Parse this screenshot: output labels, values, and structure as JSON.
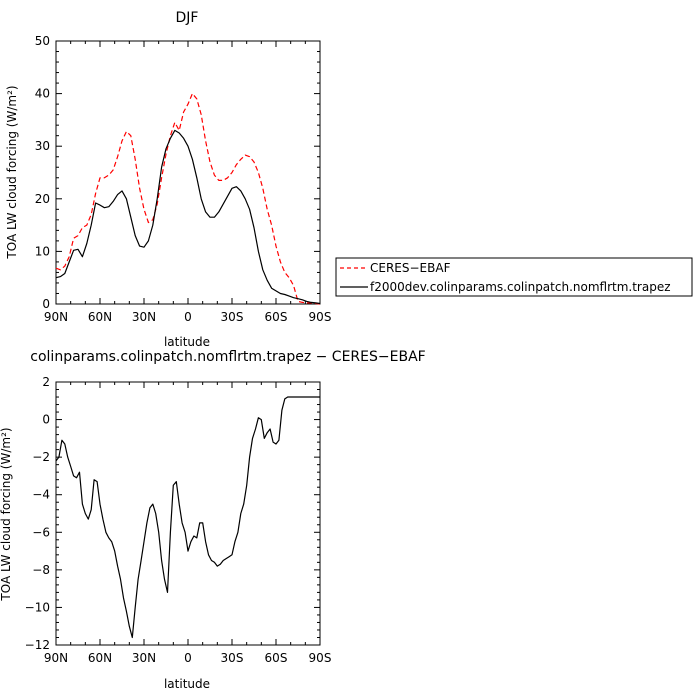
{
  "chart_data": [
    {
      "type": "line",
      "title": "DJF",
      "xlabel": "latitude",
      "ylabel": "TOA LW cloud forcing (W/m²)",
      "xlim": [
        90,
        -90
      ],
      "ylim": [
        0,
        50
      ],
      "xticks": [
        "90N",
        "60N",
        "30N",
        "0",
        "30S",
        "60S",
        "90S"
      ],
      "xtick_values": [
        90,
        60,
        30,
        0,
        -30,
        -60,
        -90
      ],
      "yticks": [
        0,
        10,
        20,
        30,
        40,
        50
      ],
      "legend_position": "right",
      "series": [
        {
          "name": "CERES−EBAF",
          "color": "#ff0000",
          "style": "dashed",
          "x": [
            90,
            87,
            84,
            81,
            78,
            75,
            72,
            69,
            66,
            63,
            60,
            57,
            54,
            51,
            48,
            45,
            42,
            39,
            36,
            33,
            30,
            27,
            24,
            21,
            18,
            15,
            12,
            9,
            6,
            3,
            0,
            -3,
            -6,
            -9,
            -12,
            -15,
            -18,
            -21,
            -24,
            -27,
            -30,
            -33,
            -36,
            -39,
            -42,
            -45,
            -48,
            -51,
            -54,
            -57,
            -60,
            -63,
            -66,
            -69,
            -72,
            -75,
            -78,
            -81,
            -84,
            -87,
            -90
          ],
          "y": [
            6.8,
            6.5,
            7.2,
            9.0,
            12.5,
            13.0,
            14.5,
            15.0,
            17.0,
            21.0,
            24.0,
            24.0,
            24.5,
            25.5,
            28.0,
            31.0,
            32.8,
            32.0,
            27.5,
            22.0,
            18.0,
            15.5,
            16.0,
            19.0,
            24.0,
            28.5,
            32.0,
            34.5,
            33.0,
            36.5,
            38.0,
            40.0,
            39.0,
            36.0,
            31.0,
            27.0,
            24.5,
            23.5,
            23.5,
            24.0,
            25.0,
            26.5,
            27.5,
            28.3,
            28.0,
            27.0,
            25.0,
            22.0,
            18.0,
            15.0,
            11.0,
            8.0,
            6.0,
            5.0,
            3.5,
            0.5,
            0.3,
            0.2,
            0.2,
            0.1,
            0.0
          ]
        },
        {
          "name": "f2000dev.colinparams.colinpatch.nomflrtm.trapez",
          "color": "#000000",
          "style": "solid",
          "x": [
            90,
            87,
            84,
            81,
            78,
            75,
            72,
            69,
            66,
            63,
            60,
            57,
            54,
            51,
            48,
            45,
            42,
            39,
            36,
            33,
            30,
            27,
            24,
            21,
            18,
            15,
            12,
            9,
            6,
            3,
            0,
            -3,
            -6,
            -9,
            -12,
            -15,
            -18,
            -21,
            -24,
            -27,
            -30,
            -33,
            -36,
            -39,
            -42,
            -45,
            -48,
            -51,
            -54,
            -57,
            -60,
            -63,
            -66,
            -69,
            -72,
            -75,
            -78,
            -81,
            -84,
            -87,
            -90
          ],
          "y": [
            5.0,
            5.2,
            5.8,
            8.0,
            10.2,
            10.4,
            9.0,
            11.5,
            15.0,
            19.2,
            18.8,
            18.3,
            18.5,
            19.5,
            20.8,
            21.5,
            20.0,
            16.5,
            13.0,
            11.0,
            10.8,
            12.0,
            15.0,
            20.0,
            26.0,
            29.5,
            31.5,
            33.0,
            32.5,
            31.5,
            30.0,
            27.5,
            24.0,
            20.0,
            17.5,
            16.5,
            16.5,
            17.5,
            19.0,
            20.5,
            22.0,
            22.3,
            21.5,
            20.0,
            18.0,
            14.5,
            10.0,
            6.5,
            4.5,
            3.0,
            2.5,
            2.0,
            1.8,
            1.5,
            1.2,
            1.0,
            0.8,
            0.5,
            0.3,
            0.2,
            0.1
          ]
        }
      ]
    },
    {
      "type": "line",
      "title": "colinparams.colinpatch.nomflrtm.trapez − CERES−EBAF",
      "xlabel": "latitude",
      "ylabel": "TOA LW cloud forcing (W/m²)",
      "xlim": [
        90,
        -90
      ],
      "ylim": [
        -12,
        2
      ],
      "xticks": [
        "90N",
        "60N",
        "30N",
        "0",
        "30S",
        "60S",
        "90S"
      ],
      "xtick_values": [
        90,
        60,
        30,
        0,
        -30,
        -60,
        -90
      ],
      "yticks": [
        -12,
        -10,
        -8,
        -6,
        -4,
        -2,
        0,
        2
      ],
      "series": [
        {
          "color": "#000000",
          "style": "solid",
          "x": [
            90,
            88,
            86,
            84,
            82,
            80,
            78,
            76,
            74,
            72,
            70,
            68,
            66,
            64,
            62,
            60,
            58,
            56,
            54,
            52,
            50,
            48,
            46,
            44,
            42,
            40,
            38,
            36,
            34,
            32,
            30,
            28,
            26,
            24,
            22,
            20,
            18,
            16,
            14,
            12,
            10,
            8,
            6,
            4,
            2,
            0,
            -2,
            -4,
            -6,
            -8,
            -10,
            -12,
            -14,
            -16,
            -18,
            -20,
            -22,
            -24,
            -26,
            -28,
            -30,
            -32,
            -34,
            -36,
            -38,
            -40,
            -42,
            -44,
            -46,
            -48,
            -50,
            -52,
            -54,
            -56,
            -58,
            -60,
            -62,
            -64,
            -66,
            -68,
            -70,
            -72,
            -74,
            -76,
            -78,
            -80,
            -82,
            -84,
            -86,
            -88,
            -90
          ],
          "y": [
            -2.2,
            -2.0,
            -1.1,
            -1.3,
            -2.0,
            -2.5,
            -3.0,
            -3.1,
            -2.8,
            -4.5,
            -5.0,
            -5.3,
            -4.8,
            -3.2,
            -3.3,
            -4.5,
            -5.3,
            -6.0,
            -6.3,
            -6.5,
            -7.0,
            -7.8,
            -8.5,
            -9.5,
            -10.2,
            -11.0,
            -11.6,
            -10.0,
            -8.5,
            -7.5,
            -6.5,
            -5.5,
            -4.7,
            -4.5,
            -5.0,
            -6.0,
            -7.5,
            -8.5,
            -9.2,
            -6.0,
            -3.5,
            -3.3,
            -4.5,
            -5.5,
            -6.0,
            -7.0,
            -6.5,
            -6.2,
            -6.3,
            -5.5,
            -5.5,
            -6.5,
            -7.2,
            -7.5,
            -7.6,
            -7.8,
            -7.7,
            -7.5,
            -7.4,
            -7.3,
            -7.2,
            -6.5,
            -6.0,
            -5.0,
            -4.5,
            -3.5,
            -2.0,
            -1.0,
            -0.5,
            0.1,
            0.0,
            -1.0,
            -0.7,
            -0.5,
            -1.2,
            -1.3,
            -1.1,
            0.5,
            1.1,
            1.2,
            1.2,
            1.2,
            1.2,
            1.2,
            1.2,
            1.2,
            1.2,
            1.2,
            1.2,
            1.2,
            1.2
          ]
        }
      ]
    }
  ]
}
